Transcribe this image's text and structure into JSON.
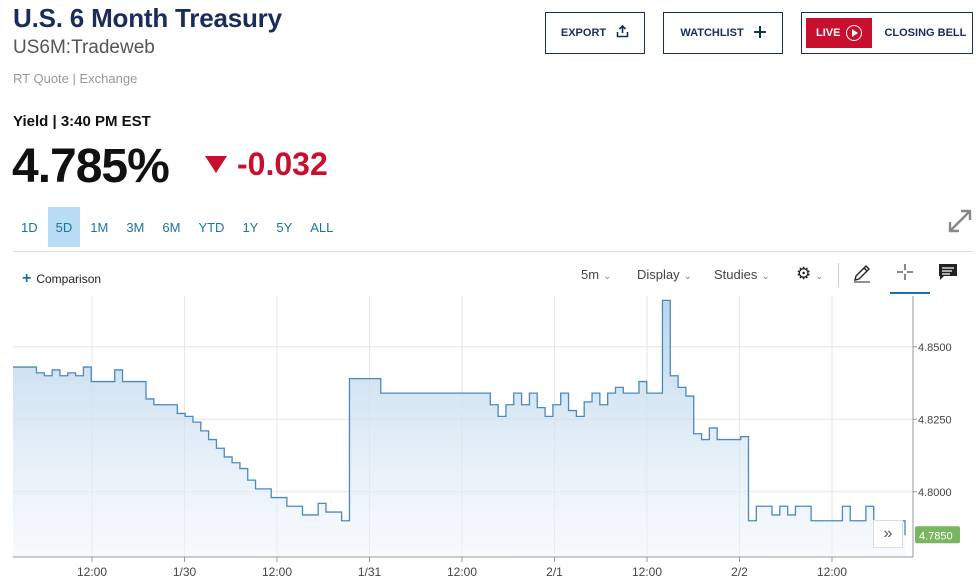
{
  "header": {
    "title": "U.S. 6 Month Treasury",
    "symbol": "US6M:Tradeweb",
    "quote_source": "RT Quote | Exchange",
    "yield_label": "Yield | 3:40 PM EST",
    "price": "4.785%",
    "change": "-0.032"
  },
  "buttons": {
    "export": "EXPORT",
    "watchlist": "WATCHLIST",
    "live": "LIVE",
    "closing_bell": "CLOSING BELL"
  },
  "ranges": [
    "1D",
    "5D",
    "1M",
    "3M",
    "6M",
    "YTD",
    "1Y",
    "5Y",
    "ALL"
  ],
  "active_range": "5D",
  "toolbar": {
    "comparison": "Comparison",
    "interval": "5m",
    "display": "Display",
    "studies": "Studies"
  },
  "colors": {
    "brand_navy": "#1a2d5a",
    "down_red": "#c8102e",
    "accent_blue": "#1a73a8",
    "last_price_badge": "#7ab661"
  },
  "chart_data": {
    "type": "area",
    "x_ticks": [
      "12:00",
      "1/30",
      "12:00",
      "1/31",
      "12:00",
      "2/1",
      "12:00",
      "2/2",
      "12:00"
    ],
    "y_ticks": [
      "4.8500",
      "4.8250",
      "4.8000"
    ],
    "ylim": [
      4.7775,
      4.8675
    ],
    "last_value_label": "4.7850",
    "grid": true,
    "values": [
      4.843,
      4.843,
      4.843,
      4.841,
      4.84,
      4.842,
      4.84,
      4.841,
      4.84,
      4.843,
      4.838,
      4.838,
      4.838,
      4.842,
      4.838,
      4.838,
      4.838,
      4.832,
      4.83,
      4.83,
      4.83,
      4.827,
      4.826,
      4.824,
      4.821,
      4.818,
      4.815,
      4.812,
      4.81,
      4.808,
      4.804,
      4.801,
      4.801,
      4.798,
      4.798,
      4.795,
      4.795,
      4.792,
      4.792,
      4.796,
      4.793,
      4.793,
      4.79,
      4.839,
      4.839,
      4.839,
      4.839,
      4.834,
      4.834,
      4.834,
      4.834,
      4.834,
      4.834,
      4.834,
      4.834,
      4.834,
      4.834,
      4.834,
      4.834,
      4.834,
      4.834,
      4.83,
      4.826,
      4.83,
      4.834,
      4.83,
      4.834,
      4.829,
      4.826,
      4.83,
      4.834,
      4.828,
      4.826,
      4.831,
      4.834,
      4.83,
      4.834,
      4.836,
      4.834,
      4.834,
      4.838,
      4.834,
      4.834,
      4.866,
      4.84,
      4.836,
      4.833,
      4.82,
      4.818,
      4.822,
      4.818,
      4.818,
      4.818,
      4.819,
      4.79,
      4.795,
      4.795,
      4.792,
      4.795,
      4.792,
      4.795,
      4.795,
      4.79,
      4.79,
      4.79,
      4.79,
      4.795,
      4.79,
      4.79,
      4.795,
      4.79,
      4.79,
      4.79,
      4.79,
      4.785
    ]
  }
}
